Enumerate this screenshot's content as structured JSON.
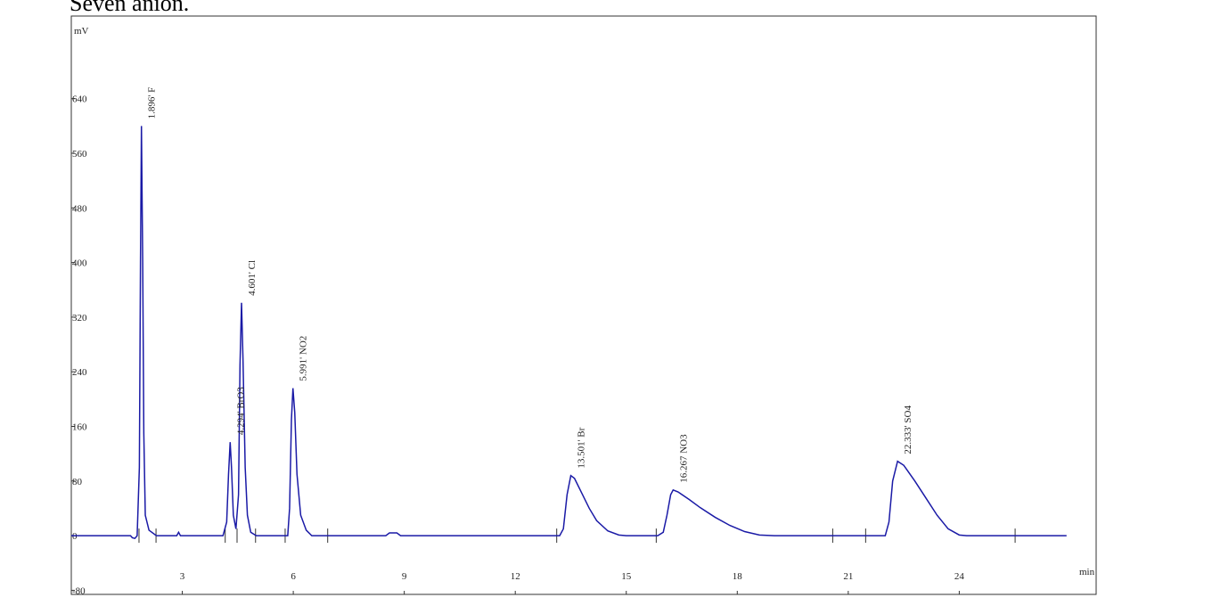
{
  "chart_data": {
    "type": "line",
    "title": "Seven anion.",
    "y_label": "mV",
    "x_label": "min",
    "xlim": [
      0,
      27.7
    ],
    "ylim": [
      -86,
      761
    ],
    "xticks": [
      3,
      6,
      9,
      12,
      15,
      18,
      21,
      24
    ],
    "yticks": [
      -80,
      0,
      80,
      160,
      240,
      320,
      400,
      480,
      560,
      640
    ],
    "x": [
      0,
      1.6,
      1.65,
      1.72,
      1.78,
      1.84,
      1.87,
      1.896,
      1.93,
      1.96,
      2.0,
      2.1,
      2.3,
      2.85,
      2.9,
      2.95,
      4.1,
      4.2,
      4.25,
      4.294,
      4.33,
      4.38,
      4.45,
      4.52,
      4.56,
      4.601,
      4.64,
      4.7,
      4.76,
      4.85,
      5.0,
      5.85,
      5.9,
      5.95,
      5.991,
      6.04,
      6.1,
      6.2,
      6.35,
      6.5,
      8.5,
      8.6,
      8.8,
      8.9,
      13.2,
      13.3,
      13.4,
      13.501,
      13.6,
      13.8,
      14.0,
      14.2,
      14.5,
      14.8,
      15.0,
      15.85,
      16.0,
      16.1,
      16.2,
      16.267,
      16.4,
      16.7,
      17.0,
      17.4,
      17.8,
      18.2,
      18.6,
      19.0,
      22.0,
      22.1,
      22.2,
      22.333,
      22.5,
      22.8,
      23.1,
      23.4,
      23.7,
      24.0,
      24.2,
      26.9
    ],
    "series": [
      {
        "name": "signal",
        "color": "#1a1aa6",
        "values": [
          0,
          0,
          -3,
          -4,
          0,
          100,
          400,
          600,
          400,
          150,
          30,
          8,
          0,
          0,
          5,
          0,
          0,
          20,
          90,
          137,
          100,
          30,
          10,
          60,
          250,
          341,
          260,
          100,
          30,
          5,
          0,
          0,
          40,
          170,
          216,
          180,
          90,
          30,
          8,
          0,
          0,
          4,
          4,
          0,
          0,
          10,
          60,
          88,
          84,
          62,
          40,
          22,
          7,
          1,
          0,
          0,
          5,
          30,
          60,
          67,
          64,
          53,
          41,
          27,
          15,
          6,
          1,
          0,
          0,
          20,
          80,
          109,
          103,
          80,
          55,
          30,
          10,
          1,
          0,
          0
        ]
      }
    ],
    "event_marks": [
      1.83,
      2.29,
      4.16,
      4.48,
      4.98,
      5.78,
      6.93,
      13.12,
      15.81,
      20.58,
      21.47,
      25.51
    ],
    "annotations": [
      {
        "text": "1.896' F",
        "x": 1.896,
        "y": 600
      },
      {
        "text": "4.294' BrO3",
        "x": 4.294,
        "y": 137
      },
      {
        "text": "4.601' Cl",
        "x": 4.601,
        "y": 341
      },
      {
        "text": "5.991' NO2",
        "x": 5.991,
        "y": 216
      },
      {
        "text": "13.501' Br",
        "x": 13.501,
        "y": 88
      },
      {
        "text": "16.267 NO3",
        "x": 16.267,
        "y": 67
      },
      {
        "text": "22.333' SO4",
        "x": 22.333,
        "y": 109
      }
    ]
  }
}
